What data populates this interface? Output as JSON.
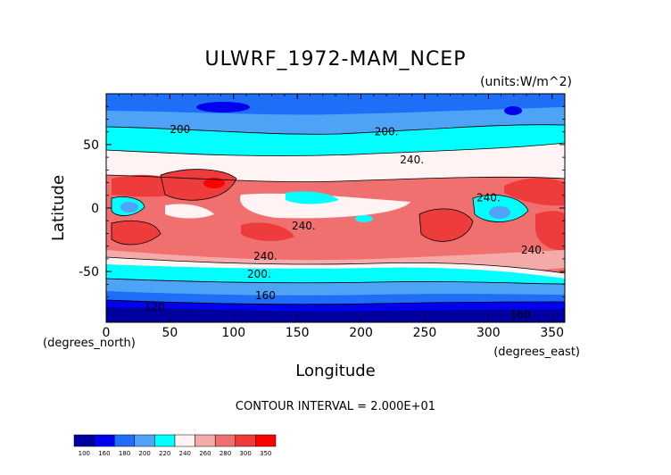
{
  "chart_data": {
    "type": "heatmap",
    "title": "ULWRF_1972-MAM_NCEP",
    "units": "(units:W/m^2)",
    "xlabel": "Longitude",
    "ylabel": "Latitude",
    "x_units": "(degrees_east)",
    "y_units": "(degrees_north)",
    "xlim": [
      0,
      360
    ],
    "ylim": [
      -90,
      90
    ],
    "x_ticks": [
      "0",
      "50",
      "100",
      "150",
      "200",
      "250",
      "300",
      "350"
    ],
    "y_ticks": [
      "50",
      "0",
      "-50"
    ],
    "contour_interval_text": "CONTOUR INTERVAL = 2.000E+01",
    "contour_labels": [
      {
        "text": "200",
        "lon": 58,
        "lat": 62
      },
      {
        "text": "200.",
        "lon": 220,
        "lat": 60
      },
      {
        "text": "240.",
        "lon": 240,
        "lat": 38
      },
      {
        "text": "240.",
        "lon": 300,
        "lat": 8
      },
      {
        "text": "240.",
        "lon": 155,
        "lat": -14
      },
      {
        "text": "240.",
        "lon": 125,
        "lat": -38
      },
      {
        "text": "240.",
        "lon": 335,
        "lat": -33
      },
      {
        "text": "200.",
        "lon": 120,
        "lat": -52
      },
      {
        "text": "160",
        "lon": 125,
        "lat": -69
      },
      {
        "text": "120",
        "lon": 38,
        "lat": -78
      },
      {
        "text": "160",
        "lon": 325,
        "lat": -84
      }
    ],
    "colorbar": {
      "levels": [
        "100",
        "160",
        "180",
        "200",
        "220",
        "240",
        "260",
        "280",
        "300",
        "350"
      ],
      "colors": [
        "#0000a0",
        "#0000ee",
        "#1e6ef8",
        "#4fa3f7",
        "#00ffff",
        "#fff3f3",
        "#f5aaaa",
        "#f07070",
        "#ee3b3b",
        "#ff0000"
      ]
    }
  }
}
